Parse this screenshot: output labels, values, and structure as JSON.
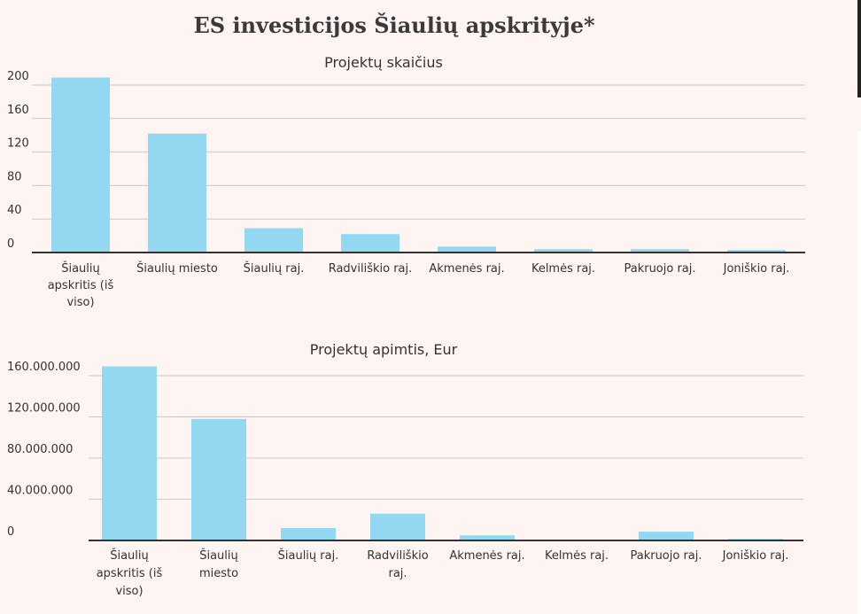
{
  "title": "ES investicijos Šiaulių apskrityje*",
  "chart_data": [
    {
      "type": "bar",
      "title": "Projektų skaičius",
      "categories": [
        [
          "Šiaulių",
          "apskritis (iš",
          "viso)"
        ],
        [
          "Šiaulių miesto"
        ],
        [
          "Šiaulių raj."
        ],
        [
          "Radviliškio raj."
        ],
        [
          "Akmenės raj."
        ],
        [
          "Kelmės raj."
        ],
        [
          "Pakruojo raj."
        ],
        [
          "Joniškio raj."
        ]
      ],
      "values": [
        209,
        142,
        29,
        22,
        7,
        4,
        4,
        3
      ],
      "ylim": [
        0,
        200
      ],
      "ytick_values": [
        0,
        40,
        80,
        120,
        160,
        200
      ],
      "ytick_labels": [
        "0",
        "40",
        "80",
        "120",
        "160",
        "200"
      ],
      "grid": true,
      "color": "#93d7f0"
    },
    {
      "type": "bar",
      "title": "Projektų apimtis, Eur",
      "categories": [
        [
          "Šiaulių",
          "apskritis (iš",
          "viso)"
        ],
        [
          "Šiaulių",
          "miesto"
        ],
        [
          "Šiaulių raj."
        ],
        [
          "Radviliškio",
          "raj."
        ],
        [
          "Akmenės raj."
        ],
        [
          "Kelmės raj."
        ],
        [
          "Pakruojo raj."
        ],
        [
          "Joniškio raj."
        ]
      ],
      "values": [
        169000000,
        118000000,
        12000000,
        26000000,
        5000000,
        0,
        8500000,
        1500000
      ],
      "ylim": [
        0,
        160000000
      ],
      "ytick_values": [
        0,
        40000000,
        80000000,
        120000000,
        160000000
      ],
      "ytick_labels": [
        "0",
        "40.000.000",
        "80.000.000",
        "120.000.000",
        "160.000.000"
      ],
      "grid": true,
      "color": "#93d7f0"
    }
  ]
}
